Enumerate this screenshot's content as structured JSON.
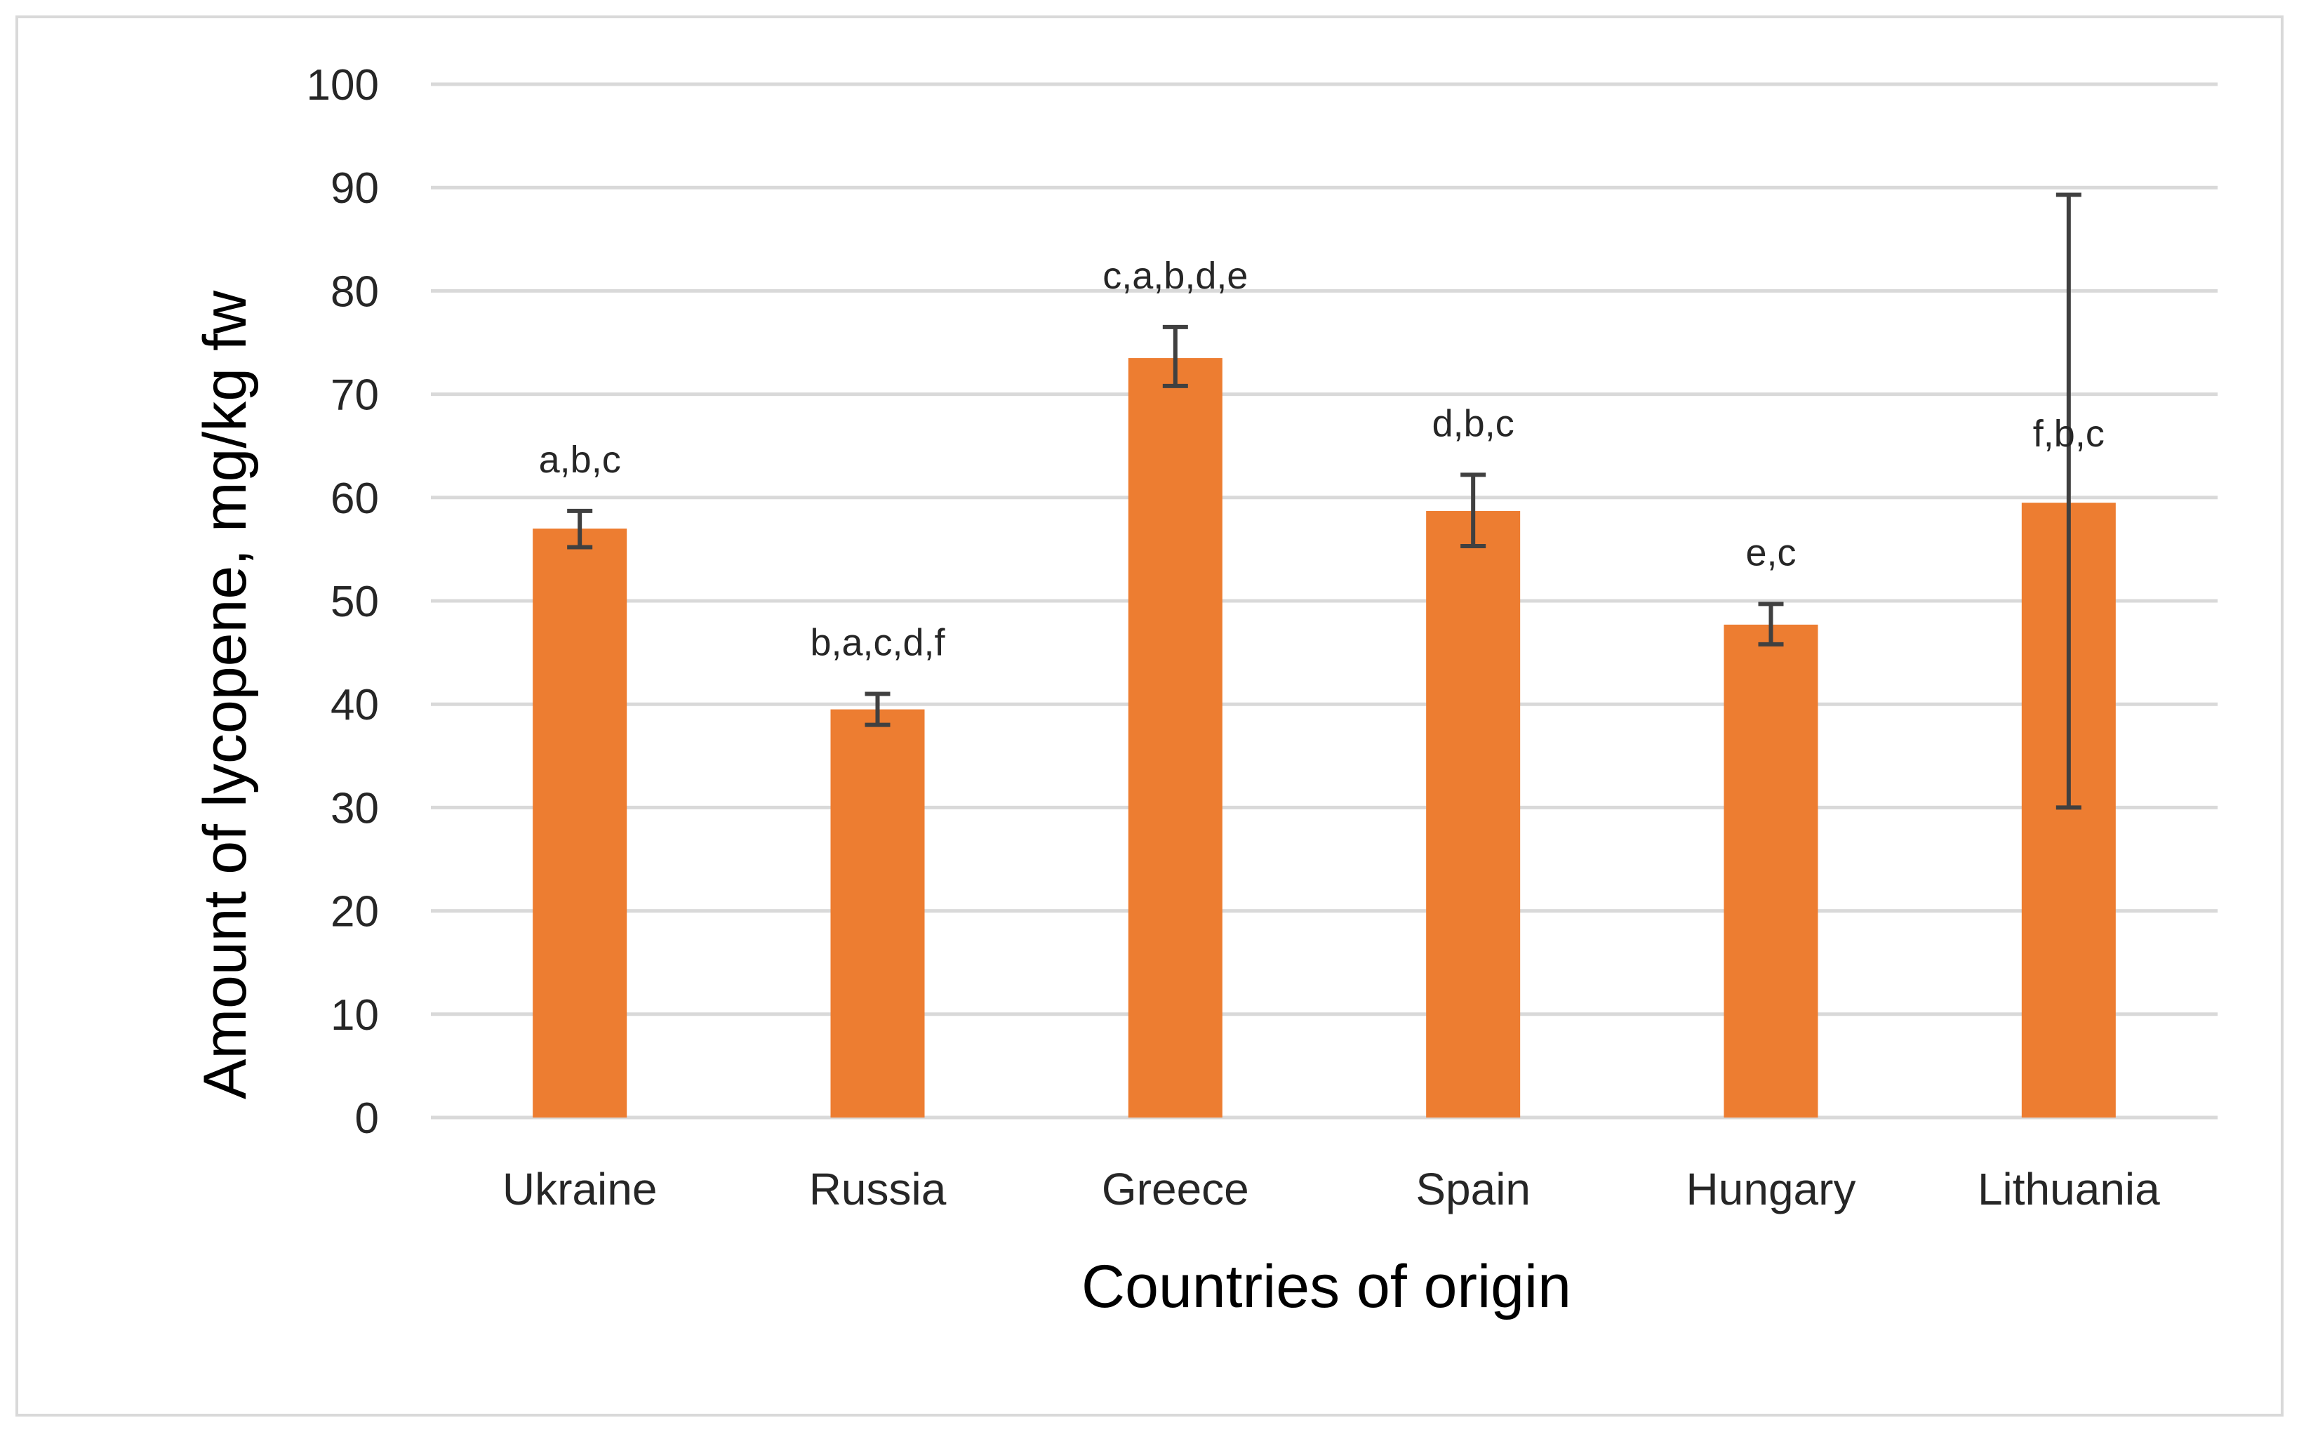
{
  "chart_data": {
    "type": "bar",
    "title": "",
    "xlabel": "Countries of origin",
    "ylabel": "Amount of lycopene, mg/kg fw",
    "ylim": [
      0,
      100
    ],
    "yticks": [
      "0",
      "10",
      "20",
      "30",
      "40",
      "50",
      "60",
      "70",
      "80",
      "90",
      "100"
    ],
    "grid": true,
    "legend": "none",
    "categories": [
      "Ukraine",
      "Russia",
      "Greece",
      "Spain",
      "Hungary",
      "Lithuania"
    ],
    "values": [
      57,
      39.5,
      73.5,
      58.7,
      47.7,
      59.5
    ],
    "error_low": [
      55.2,
      38.0,
      70.8,
      55.3,
      45.8,
      30.0
    ],
    "error_high": [
      58.7,
      41.0,
      76.5,
      62.2,
      49.7,
      89.3
    ],
    "significance_labels": [
      "a,b,c",
      "b,a,c,d,f",
      "c,a,b,d,e",
      "d,b,c",
      "e,c",
      "f,b,c"
    ],
    "colors": {
      "bar": "#ed7d31",
      "grid": "#d9d9d9",
      "error_bar": "#404040"
    }
  }
}
